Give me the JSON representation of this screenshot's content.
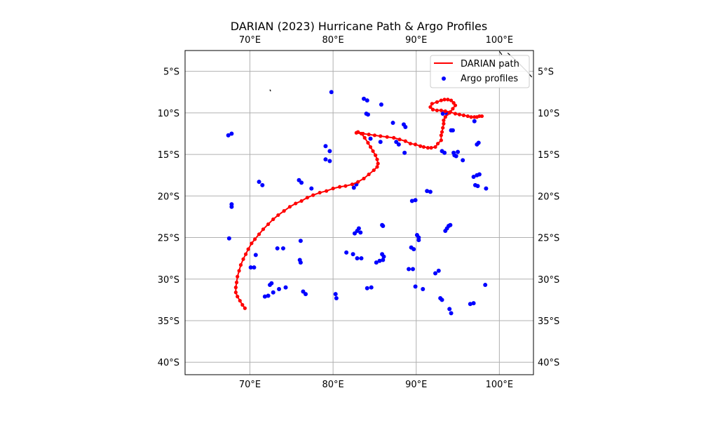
{
  "chart_data": {
    "type": "scatter",
    "title": "DARIAN (2023) Hurricane Path & Argo Profiles",
    "xlim": [
      62.2,
      104.1
    ],
    "ylim": [
      -41.5,
      -2.5
    ],
    "grid": true,
    "projection": "PlateCarree",
    "x_ticks": [
      {
        "value": 70,
        "label": "70°E"
      },
      {
        "value": 80,
        "label": "80°E"
      },
      {
        "value": 90,
        "label": "90°E"
      },
      {
        "value": 100,
        "label": "100°E"
      }
    ],
    "y_ticks": [
      {
        "value": -5,
        "label": "5°S"
      },
      {
        "value": -10,
        "label": "10°S"
      },
      {
        "value": -15,
        "label": "15°S"
      },
      {
        "value": -20,
        "label": "20°S"
      },
      {
        "value": -25,
        "label": "25°S"
      },
      {
        "value": -30,
        "label": "30°S"
      },
      {
        "value": -35,
        "label": "35°S"
      },
      {
        "value": -40,
        "label": "40°S"
      }
    ],
    "legend": {
      "position": "upper right",
      "entries": [
        {
          "label": "DARIAN path",
          "type": "line",
          "color": "#ff0000"
        },
        {
          "label": "Argo profiles",
          "type": "point",
          "color": "#0000ff"
        }
      ]
    },
    "series": [
      {
        "name": "DARIAN path",
        "kind": "line_with_markers",
        "color": "#ff0000",
        "points": [
          [
            97.9,
            -10.4
          ],
          [
            97.6,
            -10.4
          ],
          [
            97.3,
            -10.5
          ],
          [
            97.0,
            -10.5
          ],
          [
            96.6,
            -10.5
          ],
          [
            96.2,
            -10.4
          ],
          [
            95.7,
            -10.3
          ],
          [
            95.2,
            -10.2
          ],
          [
            94.7,
            -10.1
          ],
          [
            94.1,
            -9.9
          ],
          [
            93.5,
            -9.8
          ],
          [
            93.0,
            -9.7
          ],
          [
            92.5,
            -9.7
          ],
          [
            92.0,
            -9.6
          ],
          [
            91.7,
            -9.3
          ],
          [
            91.9,
            -8.9
          ],
          [
            92.5,
            -8.7
          ],
          [
            93.0,
            -8.5
          ],
          [
            93.4,
            -8.4
          ],
          [
            93.8,
            -8.4
          ],
          [
            94.2,
            -8.5
          ],
          [
            94.5,
            -8.8
          ],
          [
            94.7,
            -9.1
          ],
          [
            94.4,
            -9.5
          ],
          [
            94.0,
            -10.0
          ],
          [
            93.5,
            -10.5
          ],
          [
            93.3,
            -10.9
          ],
          [
            93.3,
            -11.3
          ],
          [
            93.2,
            -11.8
          ],
          [
            93.1,
            -12.3
          ],
          [
            93.0,
            -12.7
          ],
          [
            93.0,
            -13.3
          ],
          [
            92.6,
            -13.7
          ],
          [
            92.3,
            -14.1
          ],
          [
            91.8,
            -14.2
          ],
          [
            91.4,
            -14.2
          ],
          [
            90.9,
            -14.1
          ],
          [
            90.5,
            -14.0
          ],
          [
            89.9,
            -13.8
          ],
          [
            89.3,
            -13.7
          ],
          [
            88.7,
            -13.4
          ],
          [
            88.0,
            -13.2
          ],
          [
            87.3,
            -13.0
          ],
          [
            86.5,
            -12.9
          ],
          [
            85.7,
            -12.8
          ],
          [
            85.0,
            -12.7
          ],
          [
            84.3,
            -12.6
          ],
          [
            83.6,
            -12.5
          ],
          [
            83.0,
            -12.3
          ],
          [
            82.8,
            -12.4
          ],
          [
            83.4,
            -12.5
          ],
          [
            83.8,
            -13.0
          ],
          [
            84.2,
            -13.6
          ],
          [
            84.5,
            -14.1
          ],
          [
            84.8,
            -14.6
          ],
          [
            85.1,
            -15.1
          ],
          [
            85.3,
            -15.6
          ],
          [
            85.4,
            -16.1
          ],
          [
            85.3,
            -16.5
          ],
          [
            84.9,
            -16.9
          ],
          [
            84.3,
            -17.4
          ],
          [
            83.7,
            -17.9
          ],
          [
            83.0,
            -18.3
          ],
          [
            82.3,
            -18.6
          ],
          [
            81.5,
            -18.8
          ],
          [
            80.8,
            -18.9
          ],
          [
            80.0,
            -19.1
          ],
          [
            79.2,
            -19.4
          ],
          [
            78.4,
            -19.6
          ],
          [
            77.6,
            -19.9
          ],
          [
            76.9,
            -20.2
          ],
          [
            76.2,
            -20.6
          ],
          [
            75.5,
            -20.9
          ],
          [
            74.8,
            -21.3
          ],
          [
            74.1,
            -21.8
          ],
          [
            73.4,
            -22.3
          ],
          [
            72.8,
            -22.8
          ],
          [
            72.2,
            -23.4
          ],
          [
            71.6,
            -24.0
          ],
          [
            71.1,
            -24.6
          ],
          [
            70.6,
            -25.2
          ],
          [
            70.2,
            -25.7
          ],
          [
            69.8,
            -26.4
          ],
          [
            69.5,
            -27.0
          ],
          [
            69.2,
            -27.6
          ],
          [
            68.9,
            -28.3
          ],
          [
            68.7,
            -29.0
          ],
          [
            68.5,
            -29.7
          ],
          [
            68.4,
            -30.4
          ],
          [
            68.3,
            -31.0
          ],
          [
            68.3,
            -31.6
          ],
          [
            68.5,
            -32.1
          ],
          [
            68.8,
            -32.6
          ],
          [
            69.1,
            -33.1
          ],
          [
            69.4,
            -33.5
          ]
        ]
      },
      {
        "name": "Argo profiles",
        "kind": "scatter",
        "color": "#0000ff",
        "points": [
          [
            67.4,
            -12.7
          ],
          [
            67.8,
            -12.5
          ],
          [
            67.8,
            -21.0
          ],
          [
            67.8,
            -21.3
          ],
          [
            67.5,
            -25.1
          ],
          [
            70.7,
            -27.1
          ],
          [
            70.5,
            -28.6
          ],
          [
            70.1,
            -28.6
          ],
          [
            71.1,
            -18.3
          ],
          [
            71.5,
            -18.7
          ],
          [
            71.8,
            -32.1
          ],
          [
            72.2,
            -32.0
          ],
          [
            72.6,
            -30.5
          ],
          [
            72.4,
            -30.7
          ],
          [
            72.8,
            -31.6
          ],
          [
            73.3,
            -26.3
          ],
          [
            73.5,
            -31.2
          ],
          [
            74.0,
            -26.3
          ],
          [
            74.3,
            -31.0
          ],
          [
            75.9,
            -18.1
          ],
          [
            76.2,
            -18.4
          ],
          [
            76.1,
            -25.4
          ],
          [
            76.0,
            -27.7
          ],
          [
            76.1,
            -28.0
          ],
          [
            76.4,
            -31.5
          ],
          [
            76.7,
            -31.8
          ],
          [
            77.4,
            -19.1
          ],
          [
            79.1,
            -14.0
          ],
          [
            79.6,
            -14.6
          ],
          [
            79.1,
            -15.6
          ],
          [
            79.6,
            -15.8
          ],
          [
            79.8,
            -7.5
          ],
          [
            80.3,
            -31.8
          ],
          [
            80.4,
            -32.3
          ],
          [
            81.6,
            -26.8
          ],
          [
            82.4,
            -27.0
          ],
          [
            82.6,
            -24.5
          ],
          [
            82.9,
            -24.2
          ],
          [
            83.1,
            -23.9
          ],
          [
            83.3,
            -24.4
          ],
          [
            82.9,
            -27.5
          ],
          [
            83.4,
            -27.5
          ],
          [
            82.5,
            -19.0
          ],
          [
            82.8,
            -18.6
          ],
          [
            83.7,
            -8.3
          ],
          [
            84.1,
            -8.5
          ],
          [
            84.0,
            -10.1
          ],
          [
            84.2,
            -10.2
          ],
          [
            84.5,
            -13.1
          ],
          [
            84.1,
            -31.1
          ],
          [
            84.6,
            -31.0
          ],
          [
            85.2,
            -28.0
          ],
          [
            85.6,
            -27.8
          ],
          [
            85.8,
            -9.0
          ],
          [
            85.7,
            -13.5
          ],
          [
            85.9,
            -23.5
          ],
          [
            86.0,
            -23.6
          ],
          [
            85.9,
            -27.0
          ],
          [
            86.1,
            -27.3
          ],
          [
            86.0,
            -27.7
          ],
          [
            87.2,
            -11.2
          ],
          [
            87.6,
            -13.5
          ],
          [
            87.9,
            -13.8
          ],
          [
            88.5,
            -11.4
          ],
          [
            88.7,
            -11.7
          ],
          [
            88.6,
            -14.8
          ],
          [
            89.1,
            -28.8
          ],
          [
            89.6,
            -28.8
          ],
          [
            89.4,
            -26.2
          ],
          [
            89.7,
            -26.4
          ],
          [
            89.5,
            -20.6
          ],
          [
            89.9,
            -20.5
          ],
          [
            90.1,
            -24.7
          ],
          [
            90.3,
            -25.0
          ],
          [
            90.3,
            -25.3
          ],
          [
            89.9,
            -30.9
          ],
          [
            90.8,
            -31.2
          ],
          [
            91.3,
            -19.4
          ],
          [
            91.7,
            -19.5
          ],
          [
            92.3,
            -29.3
          ],
          [
            92.7,
            -29.0
          ],
          [
            92.9,
            -32.3
          ],
          [
            93.1,
            -32.5
          ],
          [
            93.1,
            -14.6
          ],
          [
            93.4,
            -14.8
          ],
          [
            93.2,
            -10.1
          ],
          [
            93.7,
            -10.1
          ],
          [
            93.5,
            -24.2
          ],
          [
            93.7,
            -23.9
          ],
          [
            93.9,
            -23.6
          ],
          [
            94.1,
            -23.5
          ],
          [
            94.0,
            -33.6
          ],
          [
            94.2,
            -34.1
          ],
          [
            94.2,
            -12.1
          ],
          [
            94.4,
            -12.1
          ],
          [
            94.5,
            -14.8
          ],
          [
            94.6,
            -15.1
          ],
          [
            94.8,
            -15.2
          ],
          [
            95.0,
            -14.7
          ],
          [
            95.6,
            -15.7
          ],
          [
            96.5,
            -33.0
          ],
          [
            96.9,
            -32.9
          ],
          [
            96.9,
            -17.7
          ],
          [
            97.3,
            -17.5
          ],
          [
            97.6,
            -17.4
          ],
          [
            97.1,
            -18.7
          ],
          [
            97.4,
            -18.8
          ],
          [
            97.3,
            -13.8
          ],
          [
            97.5,
            -13.6
          ],
          [
            97.0,
            -11.0
          ],
          [
            98.3,
            -30.7
          ],
          [
            98.4,
            -19.1
          ]
        ]
      }
    ],
    "coastlines": [
      {
        "name": "small-island",
        "points": [
          [
            72.4,
            -7.2
          ],
          [
            72.5,
            -7.4
          ]
        ]
      },
      {
        "name": "coast-northeast",
        "points": [
          [
            101.0,
            -2.8
          ],
          [
            101.9,
            -3.6
          ],
          [
            102.6,
            -4.3
          ],
          [
            103.3,
            -5.0
          ],
          [
            103.9,
            -5.7
          ]
        ]
      },
      {
        "name": "coast-north-edge",
        "points": [
          [
            100.0,
            -2.6
          ],
          [
            100.3,
            -3.0
          ]
        ]
      }
    ]
  }
}
